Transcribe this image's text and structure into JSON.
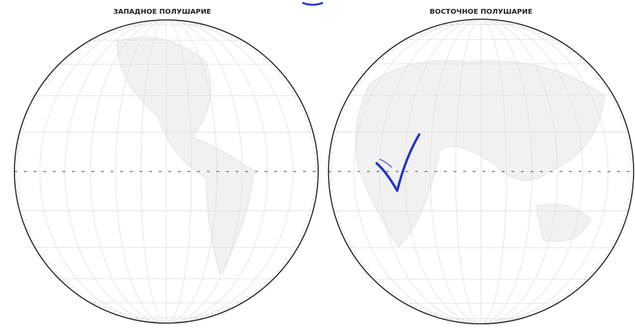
{
  "maps": [
    {
      "title": "ЗАПАДНОЕ ПОЛУШАРИЕ"
    },
    {
      "title": "ВОСТОЧНОЕ ПОЛУШАРИЕ"
    }
  ]
}
